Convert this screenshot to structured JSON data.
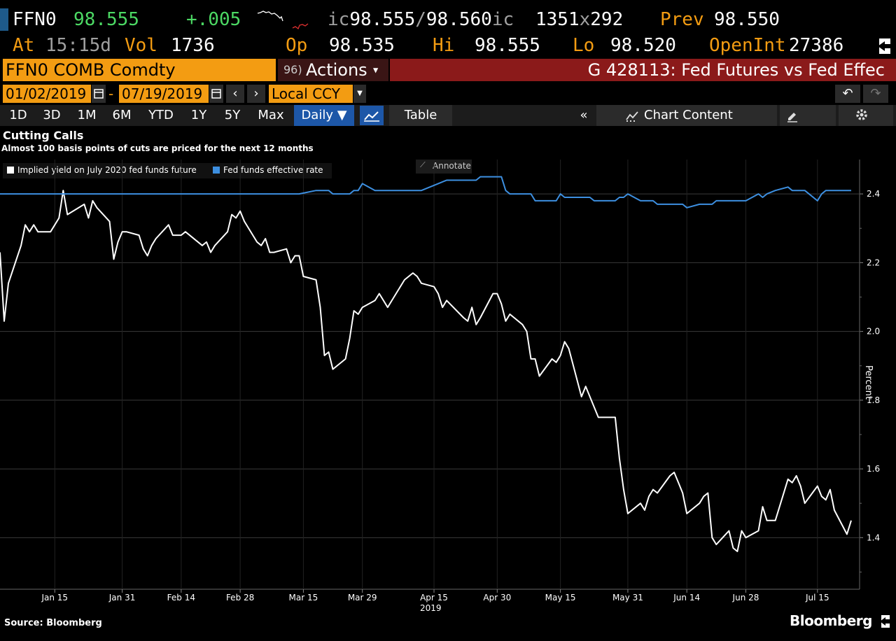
{
  "header": {
    "ticker": "FFN0",
    "last": "98.555",
    "change": "+.005",
    "quote": {
      "bid_prefix": "ic",
      "bid": "98.555",
      "sep": "/",
      "ask": "98.560",
      "ask_suffix": "ic",
      "size": "1351",
      "x": "x",
      "size2": "292"
    },
    "prev_label": "Prev",
    "prev": "98.550",
    "at_label": "At",
    "at_time": "15:15d",
    "vol_label": "Vol",
    "vol": "1736",
    "op_label": "Op",
    "op": "98.535",
    "hi_label": "Hi",
    "hi": "98.555",
    "lo_label": "Lo",
    "lo": "98.520",
    "oi_label": "OpenInt",
    "oi": "27386"
  },
  "command_bar": {
    "security": "FFN0 COMB Comdty",
    "actions_num": "96)",
    "actions_label": "Actions",
    "graph_title": "G 428113: Fed Futures vs Fed Effec"
  },
  "date_bar": {
    "start": "01/02/2019",
    "dash": "-",
    "end": "07/19/2019",
    "ccy": "Local CCY"
  },
  "period_bar": {
    "periods": [
      "1D",
      "3D",
      "1M",
      "6M",
      "YTD",
      "1Y",
      "5Y",
      "Max"
    ],
    "frequency": "Daily ▼",
    "table": "Table",
    "chart_content": "Chart Content"
  },
  "annotate_label": "Annotate",
  "source": "Source: Bloomberg",
  "brand": "Bloomberg",
  "colors": {
    "orange": "#f39c12",
    "series_white": "#ffffff",
    "series_blue": "#3d8fe0",
    "bar_red": "#8b1a1a"
  },
  "chart_data": {
    "type": "line",
    "title": "Cutting Calls",
    "subtitle": "Almost 100 basis points of cuts are priced for the next 12 months",
    "ylabel": "Percent",
    "ylim": [
      1.25,
      2.5
    ],
    "yticks": [
      1.4,
      1.6,
      1.8,
      2.0,
      2.2,
      2.4
    ],
    "ytick_labels": [
      "1.4",
      "1.6",
      "1.8",
      "2.0",
      "2.2",
      "2.4"
    ],
    "xlim": [
      "2019-01-02",
      "2019-07-25"
    ],
    "xticks": [
      "2019-01-15",
      "2019-01-31",
      "2019-02-14",
      "2019-02-28",
      "2019-03-15",
      "2019-03-29",
      "2019-04-15",
      "2019-04-30",
      "2019-05-15",
      "2019-05-31",
      "2019-06-14",
      "2019-06-28",
      "2019-07-15"
    ],
    "xtick_labels": [
      "Jan 15",
      "Jan 31",
      "Feb 14",
      "Feb 28",
      "Mar 15",
      "Mar 29",
      "Apr 15",
      "Apr 30",
      "May 15",
      "May 31",
      "Jun 14",
      "Jun 28",
      "Jul 15"
    ],
    "year_label": "2019",
    "grid": true,
    "legend": "top-left",
    "series": [
      {
        "name": "Implied yield on July 2020 fed funds future",
        "color": "#ffffff",
        "points": [
          [
            "2019-01-02",
            2.23
          ],
          [
            "2019-01-03",
            2.03
          ],
          [
            "2019-01-04",
            2.14
          ],
          [
            "2019-01-07",
            2.25
          ],
          [
            "2019-01-08",
            2.31
          ],
          [
            "2019-01-09",
            2.29
          ],
          [
            "2019-01-10",
            2.31
          ],
          [
            "2019-01-11",
            2.29
          ],
          [
            "2019-01-14",
            2.29
          ],
          [
            "2019-01-15",
            2.31
          ],
          [
            "2019-01-16",
            2.33
          ],
          [
            "2019-01-17",
            2.41
          ],
          [
            "2019-01-18",
            2.34
          ],
          [
            "2019-01-22",
            2.37
          ],
          [
            "2019-01-23",
            2.33
          ],
          [
            "2019-01-24",
            2.38
          ],
          [
            "2019-01-25",
            2.36
          ],
          [
            "2019-01-28",
            2.32
          ],
          [
            "2019-01-29",
            2.21
          ],
          [
            "2019-01-30",
            2.26
          ],
          [
            "2019-01-31",
            2.29
          ],
          [
            "2019-02-01",
            2.29
          ],
          [
            "2019-02-04",
            2.28
          ],
          [
            "2019-02-05",
            2.24
          ],
          [
            "2019-02-06",
            2.22
          ],
          [
            "2019-02-07",
            2.25
          ],
          [
            "2019-02-08",
            2.27
          ],
          [
            "2019-02-11",
            2.31
          ],
          [
            "2019-02-12",
            2.28
          ],
          [
            "2019-02-13",
            2.28
          ],
          [
            "2019-02-14",
            2.28
          ],
          [
            "2019-02-15",
            2.29
          ],
          [
            "2019-02-19",
            2.25
          ],
          [
            "2019-02-20",
            2.26
          ],
          [
            "2019-02-21",
            2.23
          ],
          [
            "2019-02-22",
            2.25
          ],
          [
            "2019-02-25",
            2.29
          ],
          [
            "2019-02-26",
            2.34
          ],
          [
            "2019-02-27",
            2.33
          ],
          [
            "2019-02-28",
            2.35
          ],
          [
            "2019-03-01",
            2.32
          ],
          [
            "2019-03-04",
            2.26
          ],
          [
            "2019-03-05",
            2.25
          ],
          [
            "2019-03-06",
            2.27
          ],
          [
            "2019-03-07",
            2.23
          ],
          [
            "2019-03-08",
            2.23
          ],
          [
            "2019-03-11",
            2.24
          ],
          [
            "2019-03-12",
            2.2
          ],
          [
            "2019-03-13",
            2.22
          ],
          [
            "2019-03-14",
            2.22
          ],
          [
            "2019-03-15",
            2.16
          ],
          [
            "2019-03-18",
            2.15
          ],
          [
            "2019-03-19",
            2.07
          ],
          [
            "2019-03-20",
            1.93
          ],
          [
            "2019-03-21",
            1.94
          ],
          [
            "2019-03-22",
            1.89
          ],
          [
            "2019-03-25",
            1.92
          ],
          [
            "2019-03-26",
            1.98
          ],
          [
            "2019-03-27",
            2.06
          ],
          [
            "2019-03-28",
            2.05
          ],
          [
            "2019-03-29",
            2.07
          ],
          [
            "2019-04-01",
            2.09
          ],
          [
            "2019-04-02",
            2.11
          ],
          [
            "2019-04-03",
            2.09
          ],
          [
            "2019-04-04",
            2.07
          ],
          [
            "2019-04-05",
            2.09
          ],
          [
            "2019-04-08",
            2.15
          ],
          [
            "2019-04-09",
            2.16
          ],
          [
            "2019-04-10",
            2.17
          ],
          [
            "2019-04-11",
            2.16
          ],
          [
            "2019-04-12",
            2.14
          ],
          [
            "2019-04-15",
            2.13
          ],
          [
            "2019-04-16",
            2.11
          ],
          [
            "2019-04-17",
            2.07
          ],
          [
            "2019-04-18",
            2.09
          ],
          [
            "2019-04-22",
            2.04
          ],
          [
            "2019-04-23",
            2.03
          ],
          [
            "2019-04-24",
            2.07
          ],
          [
            "2019-04-25",
            2.02
          ],
          [
            "2019-04-26",
            2.04
          ],
          [
            "2019-04-29",
            2.11
          ],
          [
            "2019-04-30",
            2.11
          ],
          [
            "2019-05-01",
            2.08
          ],
          [
            "2019-05-02",
            2.03
          ],
          [
            "2019-05-03",
            2.05
          ],
          [
            "2019-05-06",
            2.02
          ],
          [
            "2019-05-07",
            2.0
          ],
          [
            "2019-05-08",
            1.92
          ],
          [
            "2019-05-09",
            1.92
          ],
          [
            "2019-05-10",
            1.87
          ],
          [
            "2019-05-13",
            1.92
          ],
          [
            "2019-05-14",
            1.91
          ],
          [
            "2019-05-15",
            1.93
          ],
          [
            "2019-05-16",
            1.97
          ],
          [
            "2019-05-17",
            1.95
          ],
          [
            "2019-05-20",
            1.81
          ],
          [
            "2019-05-21",
            1.84
          ],
          [
            "2019-05-22",
            1.81
          ],
          [
            "2019-05-23",
            1.78
          ],
          [
            "2019-05-24",
            1.75
          ],
          [
            "2019-05-28",
            1.75
          ],
          [
            "2019-05-29",
            1.63
          ],
          [
            "2019-05-30",
            1.54
          ],
          [
            "2019-05-31",
            1.47
          ],
          [
            "2019-06-03",
            1.5
          ],
          [
            "2019-06-04",
            1.48
          ],
          [
            "2019-06-05",
            1.52
          ],
          [
            "2019-06-06",
            1.54
          ],
          [
            "2019-06-07",
            1.53
          ],
          [
            "2019-06-10",
            1.58
          ],
          [
            "2019-06-11",
            1.59
          ],
          [
            "2019-06-12",
            1.56
          ],
          [
            "2019-06-13",
            1.53
          ],
          [
            "2019-06-14",
            1.47
          ],
          [
            "2019-06-17",
            1.5
          ],
          [
            "2019-06-18",
            1.52
          ],
          [
            "2019-06-19",
            1.53
          ],
          [
            "2019-06-20",
            1.4
          ],
          [
            "2019-06-21",
            1.38
          ],
          [
            "2019-06-24",
            1.42
          ],
          [
            "2019-06-25",
            1.37
          ],
          [
            "2019-06-26",
            1.36
          ],
          [
            "2019-06-27",
            1.42
          ],
          [
            "2019-06-28",
            1.4
          ],
          [
            "2019-07-01",
            1.42
          ],
          [
            "2019-07-02",
            1.49
          ],
          [
            "2019-07-03",
            1.45
          ],
          [
            "2019-07-05",
            1.45
          ],
          [
            "2019-07-08",
            1.57
          ],
          [
            "2019-07-09",
            1.56
          ],
          [
            "2019-07-10",
            1.58
          ],
          [
            "2019-07-11",
            1.55
          ],
          [
            "2019-07-12",
            1.5
          ],
          [
            "2019-07-15",
            1.55
          ],
          [
            "2019-07-16",
            1.52
          ],
          [
            "2019-07-17",
            1.51
          ],
          [
            "2019-07-18",
            1.54
          ],
          [
            "2019-07-19",
            1.48
          ],
          [
            "2019-07-22",
            1.41
          ],
          [
            "2019-07-23",
            1.45
          ]
        ]
      },
      {
        "name": "Fed funds effective rate",
        "color": "#3d8fe0",
        "points": [
          [
            "2019-01-02",
            2.4
          ],
          [
            "2019-03-14",
            2.4
          ],
          [
            "2019-03-18",
            2.41
          ],
          [
            "2019-03-21",
            2.41
          ],
          [
            "2019-03-22",
            2.4
          ],
          [
            "2019-03-26",
            2.4
          ],
          [
            "2019-03-27",
            2.41
          ],
          [
            "2019-03-28",
            2.41
          ],
          [
            "2019-03-29",
            2.43
          ],
          [
            "2019-04-01",
            2.41
          ],
          [
            "2019-04-12",
            2.41
          ],
          [
            "2019-04-16",
            2.43
          ],
          [
            "2019-04-18",
            2.44
          ],
          [
            "2019-04-25",
            2.44
          ],
          [
            "2019-04-26",
            2.45
          ],
          [
            "2019-05-01",
            2.45
          ],
          [
            "2019-05-02",
            2.41
          ],
          [
            "2019-05-03",
            2.4
          ],
          [
            "2019-05-08",
            2.4
          ],
          [
            "2019-05-09",
            2.38
          ],
          [
            "2019-05-14",
            2.38
          ],
          [
            "2019-05-15",
            2.4
          ],
          [
            "2019-05-16",
            2.39
          ],
          [
            "2019-05-22",
            2.39
          ],
          [
            "2019-05-23",
            2.38
          ],
          [
            "2019-05-28",
            2.38
          ],
          [
            "2019-05-29",
            2.39
          ],
          [
            "2019-05-30",
            2.39
          ],
          [
            "2019-05-31",
            2.4
          ],
          [
            "2019-06-03",
            2.38
          ],
          [
            "2019-06-06",
            2.38
          ],
          [
            "2019-06-07",
            2.37
          ],
          [
            "2019-06-13",
            2.37
          ],
          [
            "2019-06-14",
            2.36
          ],
          [
            "2019-06-17",
            2.37
          ],
          [
            "2019-06-20",
            2.37
          ],
          [
            "2019-06-21",
            2.38
          ],
          [
            "2019-06-28",
            2.38
          ],
          [
            "2019-07-01",
            2.4
          ],
          [
            "2019-07-02",
            2.39
          ],
          [
            "2019-07-03",
            2.4
          ],
          [
            "2019-07-05",
            2.41
          ],
          [
            "2019-07-08",
            2.42
          ],
          [
            "2019-07-09",
            2.41
          ],
          [
            "2019-07-12",
            2.41
          ],
          [
            "2019-07-15",
            2.38
          ],
          [
            "2019-07-16",
            2.4
          ],
          [
            "2019-07-17",
            2.41
          ],
          [
            "2019-07-23",
            2.41
          ]
        ]
      }
    ]
  }
}
